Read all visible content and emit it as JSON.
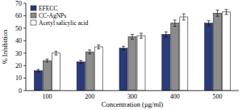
{
  "chart_data": {
    "type": "bar",
    "x_label": "Concentration (µg/ml)",
    "y_label": "% Inhibition",
    "categories": [
      "100",
      "200",
      "300",
      "400",
      "500"
    ],
    "series": [
      {
        "name": "EFECC",
        "color": "#2b3a7a",
        "values": [
          16,
          23,
          34,
          45,
          54
        ],
        "errors": [
          1,
          1.2,
          1.5,
          2,
          2
        ]
      },
      {
        "name": "CC-AgNPs",
        "color": "#8c8c8c",
        "values": [
          24,
          31,
          43,
          54,
          62
        ],
        "errors": [
          1.2,
          1.5,
          2,
          2.5,
          2.5
        ]
      },
      {
        "name": "Acetyl salicylic acid",
        "color": "#ffffff",
        "values": [
          30,
          35,
          44,
          59,
          63
        ],
        "errors": [
          1.5,
          1.5,
          2,
          2.5,
          2
        ]
      }
    ],
    "ylim": [
      0,
      70
    ],
    "yticks": [
      0,
      10,
      20,
      30,
      40,
      50,
      60,
      70
    ],
    "grid": false,
    "legend": "top-left"
  }
}
